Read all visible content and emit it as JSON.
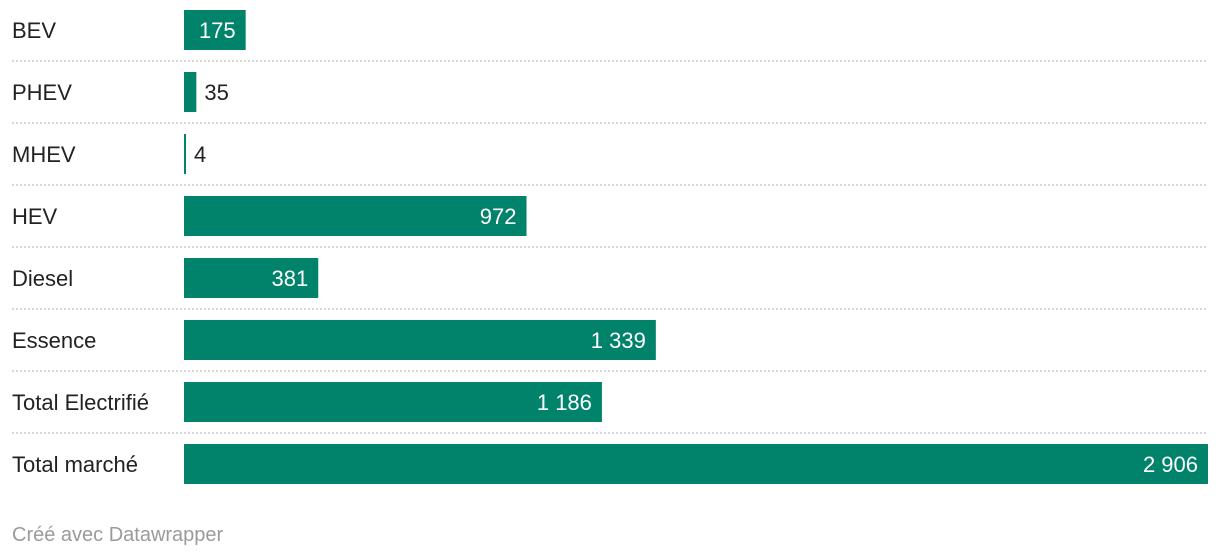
{
  "chart_data": {
    "type": "bar",
    "orientation": "horizontal",
    "categories": [
      "BEV",
      "PHEV",
      "MHEV",
      "HEV",
      "Diesel",
      "Essence",
      "Total Electrifié",
      "Total marché"
    ],
    "values": [
      175,
      35,
      4,
      972,
      381,
      1339,
      1186,
      2906
    ],
    "value_labels": [
      "175",
      "35",
      "4",
      "972",
      "381",
      "1 339",
      "1 186",
      "2 906"
    ],
    "title": "",
    "xlabel": "",
    "ylabel": "",
    "xlim": [
      0,
      2906
    ],
    "grid": false,
    "legend": "none",
    "bar_color": "#00836a"
  },
  "footer": {
    "credit": "Créé avec Datawrapper"
  }
}
